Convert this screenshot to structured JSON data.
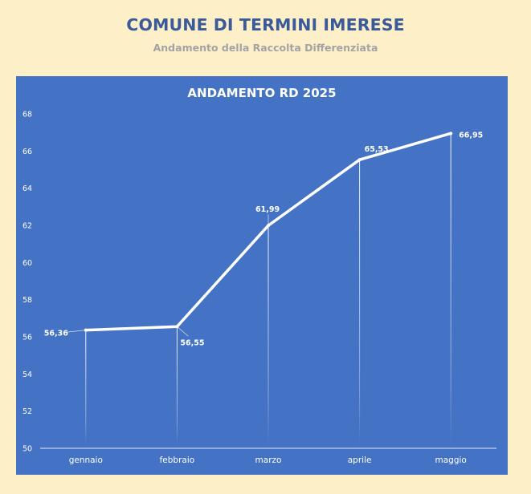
{
  "header": {
    "title": "COMUNE DI TERMINI IMERESE",
    "subtitle": "Andamento della Raccolta Differenziata"
  },
  "colors": {
    "background": "#fdf0c9",
    "chart_background": "#4472c4",
    "line": "#ffffff",
    "title": "#3a5a9a"
  },
  "chart_data": {
    "type": "line",
    "title": "ANDAMENTO RD 2025",
    "categories": [
      "gennaio",
      "febbraio",
      "marzo",
      "aprile",
      "maggio"
    ],
    "series": [
      {
        "values": [
          56.36,
          56.55,
          61.99,
          65.53,
          66.95
        ],
        "data_labels": [
          "56,36",
          "56,55",
          "61,99",
          "65,53",
          "66,95"
        ]
      }
    ],
    "ylim": [
      50,
      68
    ],
    "yticks": [
      50,
      52,
      54,
      56,
      58,
      60,
      62,
      64,
      66,
      68
    ],
    "grid": false,
    "drop_lines": true,
    "legend": "none"
  }
}
